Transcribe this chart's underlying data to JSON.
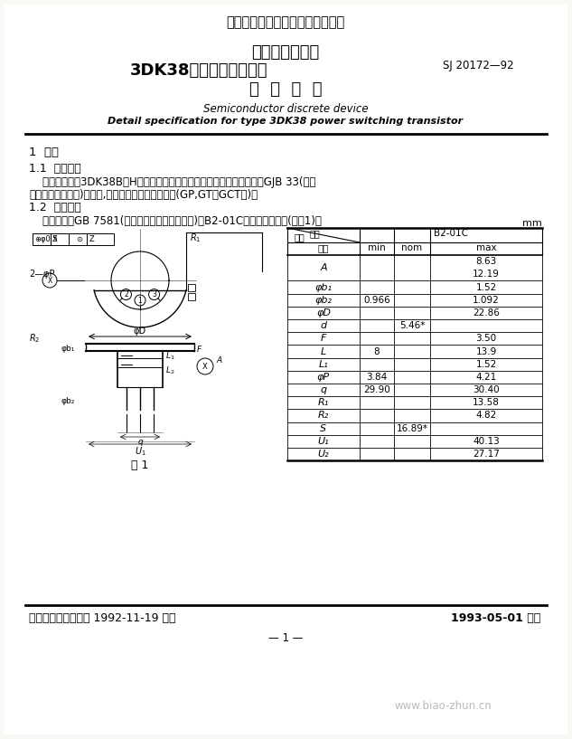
{
  "title_top": "中华人民共和国电子行业军用标准",
  "title1": "半导体分立器件",
  "title2": "3DK38型功率开关晶体管",
  "title_code": "SJ 20172—92",
  "title3": "详  细  规  范",
  "subtitle_en1": "Semiconductor discrete device",
  "subtitle_en2": "Detail specification for type 3DK38 power switching transistor",
  "section1": "1  范围",
  "section11": "1.1  主题内容",
  "para1a": "    本规范规定了3DK38B～H型功率开关晶体管的详细要求。每种器件均按GJB 33(半导",
  "para1b": "体分立器件总规范)的规定,提供产品保证的三个等级(GP,GT和GCT级)。",
  "section12": "1.2  外形尺寸",
  "para2": "    外形尺寸按GB 7581(半导体分立器件外形尺寸)的B2-01C型及如下的规定(见图1)。",
  "mm_label": "mm",
  "table_header_code": "代号",
  "table_header_type": "B2-01C",
  "table_header_size": "尺寸",
  "table_header_sym": "符号",
  "table_header_min": "min",
  "table_header_nom": "nom",
  "table_header_max": "max",
  "table_rows": [
    [
      "A",
      "",
      "",
      "8.63"
    ],
    [
      "",
      "",
      "",
      "12.19"
    ],
    [
      "φb₁",
      "",
      "",
      "1.52"
    ],
    [
      "φb₂",
      "0.966",
      "",
      "1.092"
    ],
    [
      "φD",
      "",
      "",
      "22.86"
    ],
    [
      "d",
      "",
      "5.46*",
      ""
    ],
    [
      "F",
      "",
      "",
      "3.50"
    ],
    [
      "L",
      "8",
      "",
      "13.9"
    ],
    [
      "L₁",
      "",
      "",
      "1.52"
    ],
    [
      "φP",
      "3.84",
      "",
      "4.21"
    ],
    [
      "q",
      "29.90",
      "",
      "30.40"
    ],
    [
      "R₁",
      "",
      "",
      "13.58"
    ],
    [
      "R₂",
      "",
      "",
      "4.82"
    ],
    [
      "S",
      "",
      "16.89*",
      ""
    ],
    [
      "U₁",
      "",
      "",
      "40.13"
    ],
    [
      "U₂",
      "",
      "",
      "27.17"
    ]
  ],
  "fig_label": "图 1",
  "footer_left": "中国电子工业总公司 1992-11-19 发布",
  "footer_right": "1993-05-01 实施",
  "page_num": "— 1 —",
  "watermark": "www.biao-zhun.cn",
  "bg_color": "#f8f8f4"
}
